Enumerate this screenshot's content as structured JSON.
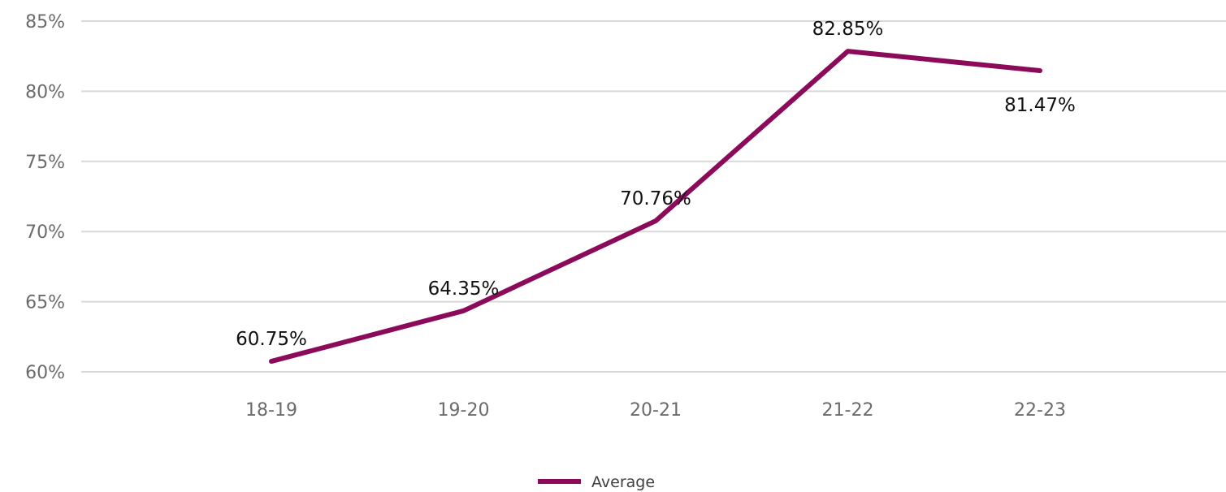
{
  "chart_data": {
    "type": "line",
    "categories": [
      "18-19",
      "19-20",
      "20-21",
      "21-22",
      "22-23"
    ],
    "series": [
      {
        "name": "Average",
        "values": [
          60.75,
          64.35,
          70.76,
          82.85,
          81.47
        ],
        "labels": [
          "60.75%",
          "64.35%",
          "70.76%",
          "82.85%",
          "81.47%"
        ],
        "color": "#8b0a5a"
      }
    ],
    "yticks": [
      "60%",
      "65%",
      "70%",
      "75%",
      "80%",
      "85%"
    ],
    "ylim": [
      60,
      85
    ],
    "grid": true,
    "legend": "bottom"
  }
}
